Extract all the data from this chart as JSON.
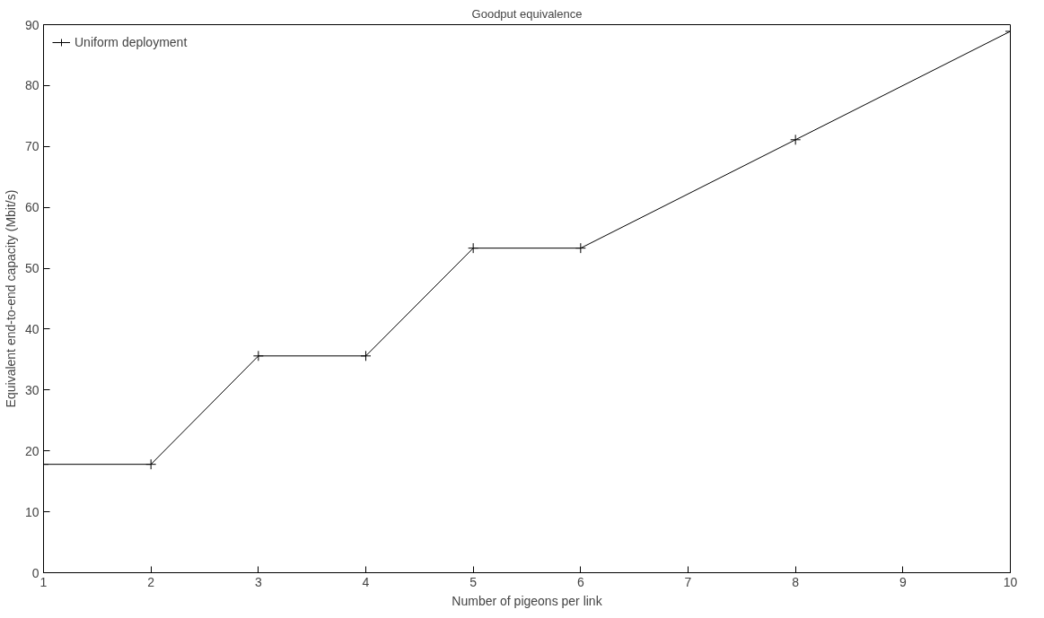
{
  "chart_data": {
    "type": "line",
    "title": "Goodput equivalence",
    "xlabel": "Number of pigeons per link",
    "ylabel": "Equivalent end-to-end capacity (Mbit/s)",
    "x": [
      1,
      2,
      3,
      4,
      5,
      6,
      8,
      10
    ],
    "series": [
      {
        "name": "Uniform deployment",
        "color": "#000000",
        "values": [
          17.8,
          17.8,
          35.6,
          35.6,
          53.3,
          53.3,
          71.1,
          88.9
        ]
      }
    ],
    "xlim": [
      1,
      10
    ],
    "ylim": [
      0,
      90
    ],
    "xticks": [
      1,
      2,
      3,
      4,
      5,
      6,
      7,
      8,
      9,
      10
    ],
    "yticks": [
      0,
      10,
      20,
      30,
      40,
      50,
      60,
      70,
      80,
      90
    ],
    "legend": "top left",
    "marker": "cross",
    "line_style": "solid",
    "grid": false
  }
}
